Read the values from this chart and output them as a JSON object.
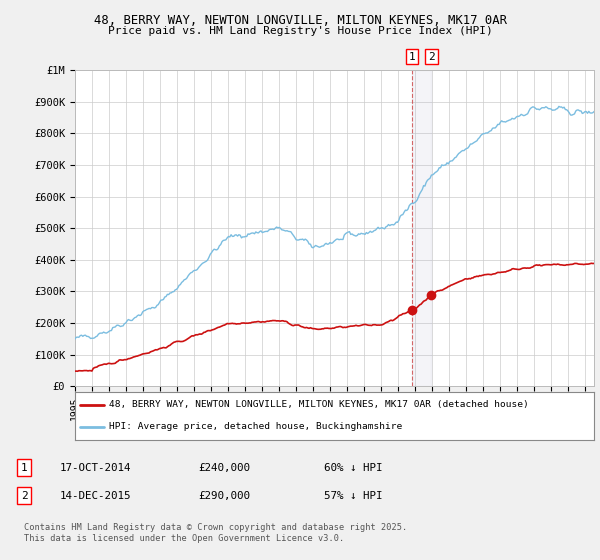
{
  "title_line1": "48, BERRY WAY, NEWTON LONGVILLE, MILTON KEYNES, MK17 0AR",
  "title_line2": "Price paid vs. HM Land Registry's House Price Index (HPI)",
  "ylabel_ticks": [
    "£0",
    "£100K",
    "£200K",
    "£300K",
    "£400K",
    "£500K",
    "£600K",
    "£700K",
    "£800K",
    "£900K",
    "£1M"
  ],
  "ytick_values": [
    0,
    100000,
    200000,
    300000,
    400000,
    500000,
    600000,
    700000,
    800000,
    900000,
    1000000
  ],
  "ylim": [
    0,
    1000000
  ],
  "xlim_start": 1995,
  "xlim_end": 2025.5,
  "hpi_color": "#7bbde0",
  "price_color": "#cc1111",
  "legend_label1": "48, BERRY WAY, NEWTON LONGVILLE, MILTON KEYNES, MK17 0AR (detached house)",
  "legend_label2": "HPI: Average price, detached house, Buckinghamshire",
  "marker1_date": 2014.79,
  "marker1_price": 240000,
  "marker2_date": 2015.95,
  "marker2_price": 290000,
  "annotation1_date": "17-OCT-2014",
  "annotation1_price": "£240,000",
  "annotation1_hpi": "60% ↓ HPI",
  "annotation2_date": "14-DEC-2015",
  "annotation2_price": "£290,000",
  "annotation2_hpi": "57% ↓ HPI",
  "footer": "Contains HM Land Registry data © Crown copyright and database right 2025.\nThis data is licensed under the Open Government Licence v3.0.",
  "background_color": "#f0f0f0",
  "plot_bg_color": "#ffffff",
  "grid_color": "#cccccc"
}
